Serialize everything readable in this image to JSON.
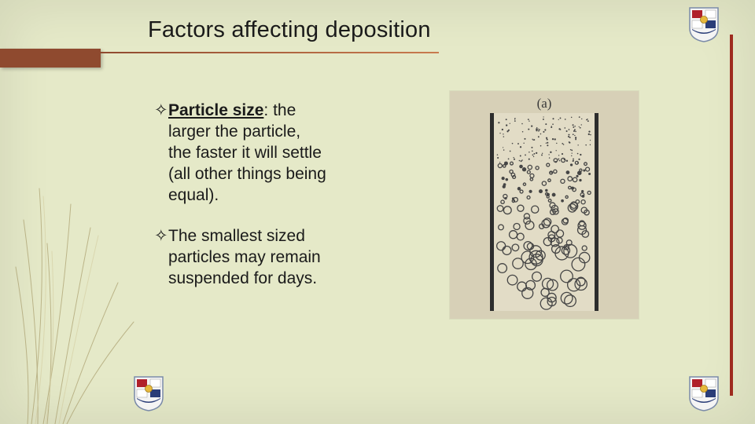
{
  "slide": {
    "title": "Factors affecting deposition",
    "background_color": "#e5e9c8",
    "accent_color": "#8f4a2f",
    "right_bar_color": "#9e2b1f",
    "title_fontsize": 29,
    "body_fontsize": 21
  },
  "bullets": [
    {
      "html_label_bold": "Particle size",
      "html_rest": ": the larger the particle, the faster it will settle (all other things being equal).",
      "underline_bold": true
    },
    {
      "html_plain": "The smallest sized particles may remain suspended for days."
    }
  ],
  "figure": {
    "label": "(a)",
    "panel_bg": "#d7d0b7",
    "jar_bg": "#e2dcc6",
    "wall_color": "#2d2d2d",
    "particle_color": "#454545"
  },
  "crest": {
    "border": "#7a8aa8",
    "field_red": "#b0202a",
    "field_white": "#ffffff",
    "field_blue": "#2a3d78",
    "center_gold": "#e7b93c"
  }
}
